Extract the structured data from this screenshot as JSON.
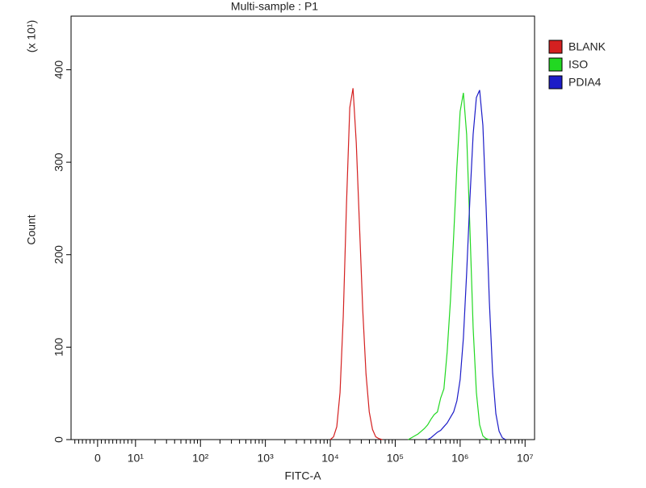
{
  "chart_data": {
    "type": "histogram-overlay",
    "title": "Multi-sample : P1",
    "x_label": "FITC-A",
    "y_label": "Count",
    "y_multiplier": "(x 10¹)",
    "xscale": "symlog",
    "linthresh": 10,
    "xlim": [
      -7,
      14000000
    ],
    "ylim": [
      0,
      458
    ],
    "yticks": [
      0,
      100,
      200,
      300,
      400
    ],
    "xticks": [
      0,
      {
        "value": 10,
        "label": "10¹"
      },
      {
        "value": 100,
        "label": "10²"
      },
      {
        "value": 1000,
        "label": "10³"
      },
      {
        "value": 10000,
        "label": "10⁴"
      },
      {
        "value": 100000,
        "label": "10⁵"
      },
      {
        "value": 1000000,
        "label": "10⁶"
      },
      {
        "value": 10000000,
        "label": "10⁷"
      }
    ],
    "xminorticks": [
      -6,
      -5,
      -4,
      -3,
      -2,
      -1,
      1,
      2,
      3,
      4,
      5,
      6,
      7,
      8,
      9,
      20,
      30,
      40,
      50,
      60,
      70,
      80,
      90,
      200,
      300,
      400,
      500,
      600,
      700,
      800,
      900,
      2000,
      3000,
      4000,
      5000,
      6000,
      7000,
      8000,
      9000,
      20000,
      30000,
      40000,
      50000,
      60000,
      70000,
      80000,
      90000,
      200000,
      300000,
      400000,
      500000,
      600000,
      700000,
      800000,
      900000,
      2000000,
      3000000,
      4000000,
      5000000,
      6000000,
      7000000,
      8000000,
      9000000
    ],
    "legend": "right",
    "series": [
      {
        "name": "BLANK",
        "color": "#d42020",
        "x": [
          10000,
          11220,
          12589,
          14125,
          15849,
          17783,
          19953,
          22387,
          25119,
          28184,
          31623,
          35481,
          39811,
          44668,
          50119,
          56234,
          63096
        ],
        "values": [
          0,
          3,
          14,
          51,
          134,
          256,
          359,
          380,
          321,
          231,
          140,
          71,
          30,
          11,
          3,
          1,
          0
        ]
      },
      {
        "name": "ISO",
        "color": "#22d822",
        "x": [
          158489,
          177828,
          199526,
          223872,
          251189,
          281838,
          316228,
          354813,
          398107,
          446684,
          501187,
          562341,
          630957,
          707946,
          794328,
          891251,
          1000000,
          1122018,
          1258925,
          1412538,
          1584893,
          1778279,
          1995262,
          2238721,
          2511886,
          2818383
        ],
        "values": [
          0,
          2,
          4,
          6,
          9,
          12,
          16,
          22,
          27,
          30,
          45,
          55,
          95,
          150,
          220,
          295,
          355,
          375,
          330,
          229,
          121,
          51,
          16,
          4,
          1,
          0
        ]
      },
      {
        "name": "PDIA4",
        "color": "#1c1cc8",
        "x": [
          316228,
          354813,
          398107,
          446684,
          501187,
          562341,
          630957,
          707946,
          794328,
          891251,
          1000000,
          1122018,
          1258925,
          1412538,
          1584893,
          1778279,
          1995262,
          2238721,
          2511886,
          2818383,
          3162278,
          3548134,
          3981072,
          4466836,
          5011872
        ],
        "values": [
          0,
          2,
          5,
          8,
          10,
          14,
          18,
          24,
          30,
          42,
          65,
          110,
          180,
          260,
          330,
          370,
          378,
          340,
          251,
          149,
          72,
          28,
          9,
          2,
          0
        ]
      }
    ]
  }
}
